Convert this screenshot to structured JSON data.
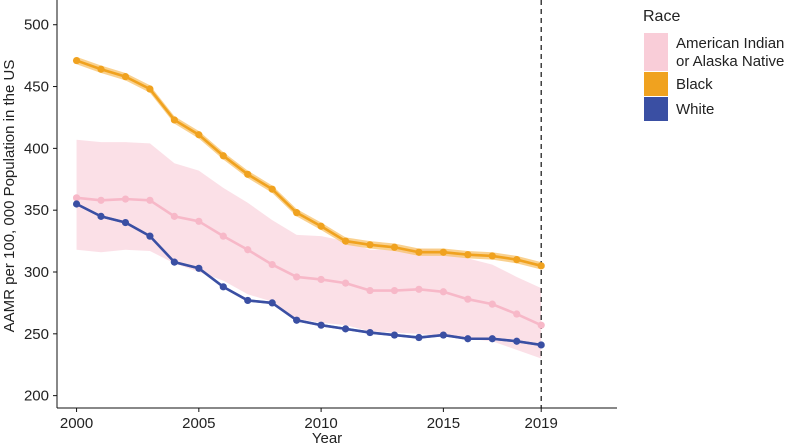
{
  "chart_data": {
    "type": "line",
    "title": "",
    "xlabel": "Year",
    "ylabel": "AAMR per 100, 000 Population in the US",
    "xlim": [
      1999.2,
      2022.1
    ],
    "ylim": [
      190,
      520
    ],
    "x_ticks": [
      2000,
      2005,
      2010,
      2015,
      2019
    ],
    "x_tick_labels": [
      "2000",
      "2005",
      "2010",
      "2015",
      "2019"
    ],
    "y_ticks": [
      200,
      250,
      300,
      350,
      400,
      450,
      500
    ],
    "y_tick_labels": [
      "200",
      "250",
      "300",
      "350",
      "400",
      "450",
      "500"
    ],
    "reference_line_x": 2019,
    "x": [
      2000,
      2001,
      2002,
      2003,
      2004,
      2005,
      2006,
      2007,
      2008,
      2009,
      2010,
      2011,
      2012,
      2013,
      2014,
      2015,
      2016,
      2017,
      2018,
      2019
    ],
    "series": [
      {
        "name": "American Indian or Alaska Native",
        "color": "#f7b8c8",
        "ribbon_color": "#f9cdd8",
        "values": [
          360,
          358,
          359,
          358,
          345,
          341,
          329,
          318,
          306,
          296,
          294,
          291,
          285,
          285,
          286,
          284,
          278,
          274,
          266,
          257
        ],
        "lower": [
          318,
          316,
          318,
          317,
          307,
          300,
          293,
          282,
          276,
          262,
          259,
          257,
          252,
          251,
          250,
          248,
          246,
          244,
          237,
          230
        ],
        "upper": [
          407,
          405,
          405,
          404,
          388,
          382,
          368,
          356,
          342,
          330,
          329,
          325,
          318,
          318,
          319,
          318,
          311,
          306,
          296,
          287
        ]
      },
      {
        "name": "Black",
        "color": "#f0a21f",
        "ribbon_color": "#f7c26a",
        "values": [
          471,
          464,
          458,
          448,
          423,
          411,
          394,
          379,
          367,
          348,
          337,
          325,
          322,
          320,
          316,
          316,
          314,
          313,
          310,
          305
        ],
        "lower": [
          468,
          461,
          455,
          445,
          420,
          408,
          391,
          376,
          364,
          345,
          334,
          322,
          319,
          317,
          313,
          313,
          311,
          310,
          307,
          302
        ],
        "upper": [
          474,
          467,
          461,
          451,
          426,
          414,
          397,
          382,
          370,
          351,
          340,
          328,
          325,
          323,
          319,
          319,
          317,
          316,
          313,
          308
        ]
      },
      {
        "name": "White",
        "color": "#3a4fa3",
        "ribbon_color": "#6a7cc0",
        "values": [
          355,
          345,
          340,
          329,
          308,
          303,
          288,
          277,
          275,
          261,
          257,
          254,
          251,
          249,
          247,
          249,
          246,
          246,
          244,
          241
        ],
        "lower": [
          354,
          344,
          339,
          328,
          307,
          302,
          287,
          276,
          274,
          260,
          256,
          253,
          250,
          248,
          246,
          248,
          245,
          245,
          243,
          240
        ],
        "upper": [
          356,
          346,
          341,
          330,
          309,
          304,
          289,
          278,
          276,
          262,
          258,
          255,
          252,
          250,
          248,
          250,
          247,
          247,
          245,
          242
        ]
      }
    ],
    "legend": {
      "title": "Race",
      "position": "right",
      "entries": [
        {
          "lines": [
            "American Indian",
            "or Alaska Native"
          ],
          "color": "#f9cdd8"
        },
        {
          "lines": [
            "Black"
          ],
          "color": "#f0a21f"
        },
        {
          "lines": [
            "White"
          ],
          "color": "#3a4fa3"
        }
      ]
    }
  }
}
